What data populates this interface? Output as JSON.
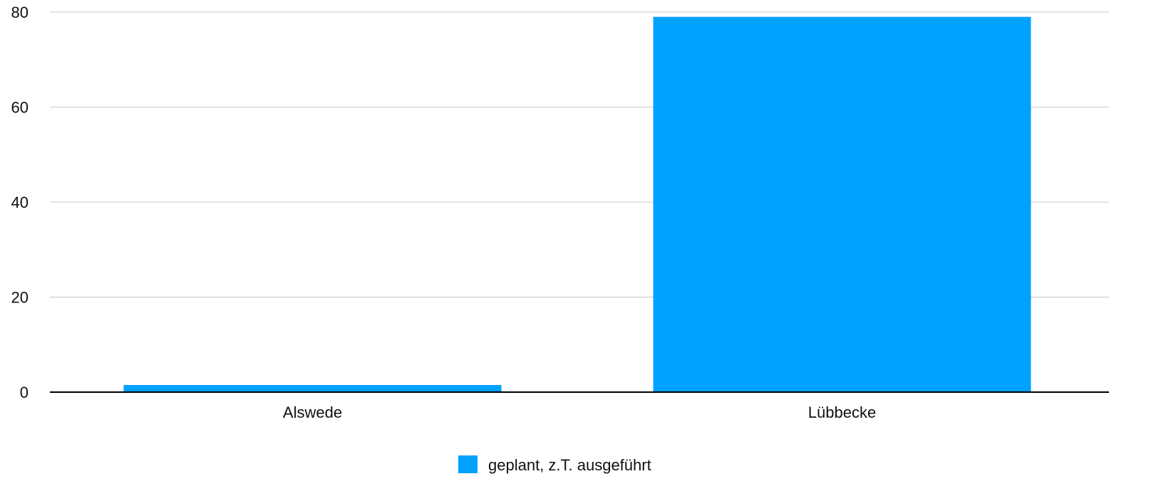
{
  "chart_data": {
    "type": "bar",
    "categories": [
      "Alswede",
      "Lübbecke"
    ],
    "series": [
      {
        "name": "geplant, z.T. ausgeführt",
        "values": [
          1.5,
          79
        ],
        "color": "#00a2ff"
      }
    ],
    "ylim": [
      0,
      80
    ],
    "yticks": [
      0,
      20,
      40,
      60,
      80
    ],
    "ytick_labels": [
      "0",
      "20",
      "40",
      "60",
      "80"
    ],
    "grid": true,
    "gridline_color": "#c8c8c8",
    "axis_color": "#000000",
    "legend_position": "bottom-center"
  }
}
